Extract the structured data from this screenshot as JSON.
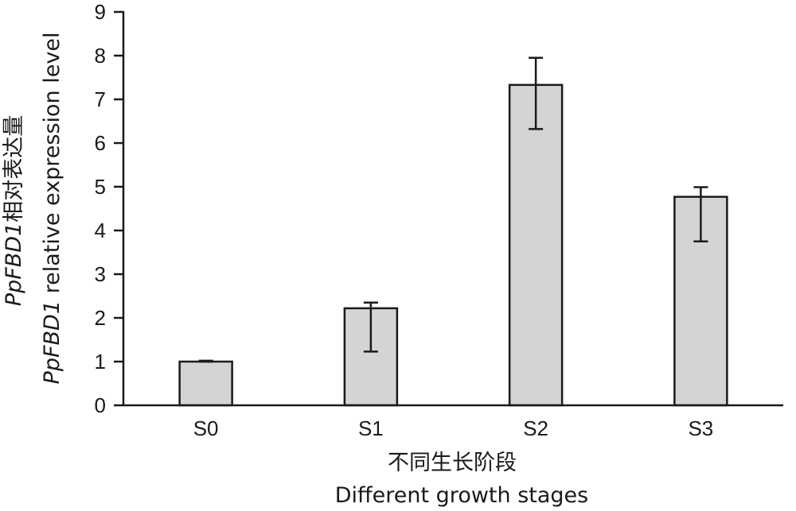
{
  "chart_data": {
    "type": "bar",
    "categories": [
      "S0",
      "S1",
      "S2",
      "S3"
    ],
    "values": [
      1.0,
      2.22,
      7.33,
      4.77
    ],
    "error_low": [
      1.0,
      1.23,
      6.32,
      3.75
    ],
    "error_high": [
      1.02,
      2.35,
      7.95,
      4.99
    ],
    "ylim": [
      0,
      9
    ],
    "yticks": [
      0,
      1,
      2,
      3,
      4,
      5,
      6,
      7,
      8,
      9
    ],
    "xlabel_cn": "不同生长阶段",
    "xlabel_en": "Different growth stages",
    "ylabel_gene_cn": "PpFBD1",
    "ylabel_cn_rest": "相对表达量",
    "ylabel_gene_en": "PpFBD1",
    "ylabel_en_rest": " relative expression level",
    "bar_color": "#d4d4d4",
    "line_color": "#1a1a1a",
    "grid": false,
    "legend": "none"
  }
}
